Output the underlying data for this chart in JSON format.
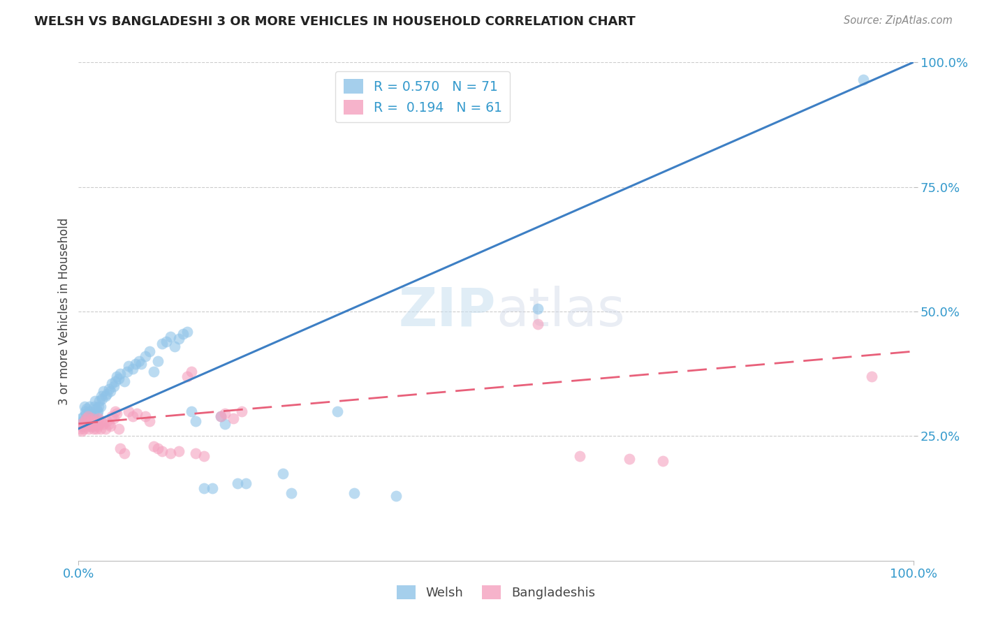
{
  "title": "WELSH VS BANGLADESHI 3 OR MORE VEHICLES IN HOUSEHOLD CORRELATION CHART",
  "source": "Source: ZipAtlas.com",
  "ylabel": "3 or more Vehicles in Household",
  "watermark": "ZIPatlas",
  "welsh_R": 0.57,
  "welsh_N": 71,
  "bangladeshi_R": 0.194,
  "bangladeshi_N": 61,
  "welsh_color": "#8fc3e8",
  "bangladeshi_color": "#f4a0be",
  "welsh_line_color": "#3d7fc4",
  "bangladeshi_line_color": "#e8607a",
  "bg_color": "#ffffff",
  "grid_color": "#cccccc",
  "xlim": [
    0.0,
    1.0
  ],
  "ylim": [
    0.0,
    1.0
  ],
  "welsh_line_x0": 0.0,
  "welsh_line_y0": 0.265,
  "welsh_line_x1": 1.0,
  "welsh_line_y1": 1.0,
  "bang_line_x0": 0.0,
  "bang_line_y0": 0.275,
  "bang_line_x1": 1.0,
  "bang_line_y1": 0.42,
  "welsh_points": [
    [
      0.002,
      0.275
    ],
    [
      0.003,
      0.285
    ],
    [
      0.004,
      0.27
    ],
    [
      0.005,
      0.28
    ],
    [
      0.006,
      0.29
    ],
    [
      0.007,
      0.31
    ],
    [
      0.008,
      0.3
    ],
    [
      0.009,
      0.295
    ],
    [
      0.01,
      0.305
    ],
    [
      0.011,
      0.29
    ],
    [
      0.012,
      0.295
    ],
    [
      0.013,
      0.31
    ],
    [
      0.014,
      0.3
    ],
    [
      0.015,
      0.285
    ],
    [
      0.016,
      0.27
    ],
    [
      0.017,
      0.285
    ],
    [
      0.018,
      0.295
    ],
    [
      0.019,
      0.31
    ],
    [
      0.02,
      0.32
    ],
    [
      0.021,
      0.305
    ],
    [
      0.022,
      0.295
    ],
    [
      0.023,
      0.3
    ],
    [
      0.024,
      0.31
    ],
    [
      0.025,
      0.32
    ],
    [
      0.026,
      0.31
    ],
    [
      0.027,
      0.33
    ],
    [
      0.028,
      0.325
    ],
    [
      0.03,
      0.34
    ],
    [
      0.032,
      0.33
    ],
    [
      0.034,
      0.335
    ],
    [
      0.036,
      0.345
    ],
    [
      0.038,
      0.34
    ],
    [
      0.04,
      0.355
    ],
    [
      0.042,
      0.35
    ],
    [
      0.044,
      0.36
    ],
    [
      0.046,
      0.37
    ],
    [
      0.048,
      0.365
    ],
    [
      0.05,
      0.375
    ],
    [
      0.055,
      0.36
    ],
    [
      0.058,
      0.38
    ],
    [
      0.06,
      0.39
    ],
    [
      0.065,
      0.385
    ],
    [
      0.068,
      0.395
    ],
    [
      0.072,
      0.4
    ],
    [
      0.075,
      0.395
    ],
    [
      0.08,
      0.41
    ],
    [
      0.085,
      0.42
    ],
    [
      0.09,
      0.38
    ],
    [
      0.095,
      0.4
    ],
    [
      0.1,
      0.435
    ],
    [
      0.105,
      0.44
    ],
    [
      0.11,
      0.45
    ],
    [
      0.115,
      0.43
    ],
    [
      0.12,
      0.445
    ],
    [
      0.125,
      0.455
    ],
    [
      0.13,
      0.46
    ],
    [
      0.135,
      0.3
    ],
    [
      0.14,
      0.28
    ],
    [
      0.15,
      0.145
    ],
    [
      0.16,
      0.145
    ],
    [
      0.17,
      0.29
    ],
    [
      0.175,
      0.275
    ],
    [
      0.19,
      0.155
    ],
    [
      0.2,
      0.155
    ],
    [
      0.245,
      0.175
    ],
    [
      0.255,
      0.135
    ],
    [
      0.31,
      0.3
    ],
    [
      0.33,
      0.135
    ],
    [
      0.38,
      0.13
    ],
    [
      0.55,
      0.505
    ],
    [
      0.94,
      0.965
    ]
  ],
  "bangladeshi_points": [
    [
      0.002,
      0.265
    ],
    [
      0.003,
      0.275
    ],
    [
      0.004,
      0.26
    ],
    [
      0.005,
      0.27
    ],
    [
      0.006,
      0.265
    ],
    [
      0.007,
      0.28
    ],
    [
      0.008,
      0.27
    ],
    [
      0.009,
      0.285
    ],
    [
      0.01,
      0.275
    ],
    [
      0.011,
      0.29
    ],
    [
      0.012,
      0.265
    ],
    [
      0.013,
      0.27
    ],
    [
      0.014,
      0.28
    ],
    [
      0.015,
      0.27
    ],
    [
      0.016,
      0.285
    ],
    [
      0.017,
      0.275
    ],
    [
      0.018,
      0.265
    ],
    [
      0.019,
      0.28
    ],
    [
      0.02,
      0.27
    ],
    [
      0.021,
      0.265
    ],
    [
      0.022,
      0.28
    ],
    [
      0.023,
      0.27
    ],
    [
      0.024,
      0.285
    ],
    [
      0.025,
      0.275
    ],
    [
      0.026,
      0.265
    ],
    [
      0.027,
      0.28
    ],
    [
      0.03,
      0.275
    ],
    [
      0.032,
      0.265
    ],
    [
      0.034,
      0.28
    ],
    [
      0.036,
      0.275
    ],
    [
      0.038,
      0.27
    ],
    [
      0.04,
      0.29
    ],
    [
      0.042,
      0.285
    ],
    [
      0.044,
      0.3
    ],
    [
      0.046,
      0.295
    ],
    [
      0.048,
      0.265
    ],
    [
      0.05,
      0.225
    ],
    [
      0.055,
      0.215
    ],
    [
      0.06,
      0.3
    ],
    [
      0.065,
      0.29
    ],
    [
      0.07,
      0.295
    ],
    [
      0.08,
      0.29
    ],
    [
      0.085,
      0.28
    ],
    [
      0.09,
      0.23
    ],
    [
      0.095,
      0.225
    ],
    [
      0.1,
      0.22
    ],
    [
      0.11,
      0.215
    ],
    [
      0.12,
      0.22
    ],
    [
      0.13,
      0.37
    ],
    [
      0.135,
      0.38
    ],
    [
      0.14,
      0.215
    ],
    [
      0.15,
      0.21
    ],
    [
      0.17,
      0.29
    ],
    [
      0.175,
      0.295
    ],
    [
      0.185,
      0.285
    ],
    [
      0.195,
      0.3
    ],
    [
      0.55,
      0.475
    ],
    [
      0.6,
      0.21
    ],
    [
      0.66,
      0.205
    ],
    [
      0.7,
      0.2
    ],
    [
      0.95,
      0.37
    ]
  ],
  "ytick_positions": [
    0.25,
    0.5,
    0.75,
    1.0
  ],
  "legend_welsh_label": "Welsh",
  "legend_bangladeshi_label": "Bangladeshis"
}
